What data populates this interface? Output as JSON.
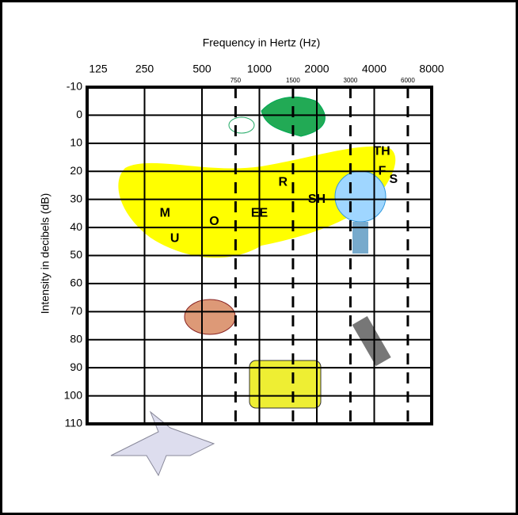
{
  "chart_data": {
    "type": "audiogram",
    "title": "Frequency in Hertz (Hz)",
    "y_label": "Intensity in decibels (dB)",
    "x_log_scale": true,
    "xlim": [
      125,
      8000
    ],
    "xticks": [
      125,
      250,
      500,
      1000,
      2000,
      4000,
      8000
    ],
    "x_minor_ticks": [
      750,
      1500,
      3000,
      6000
    ],
    "ylim": [
      -10,
      110
    ],
    "y_reversed": true,
    "yticks": [
      -10,
      0,
      10,
      20,
      30,
      40,
      50,
      60,
      70,
      80,
      90,
      100,
      110
    ],
    "grid": true,
    "color": "#000000",
    "annotations": [
      {
        "text": "M",
        "x": 320,
        "y": 35
      },
      {
        "text": "U",
        "x": 360,
        "y": 44
      },
      {
        "text": "O",
        "x": 580,
        "y": 38
      },
      {
        "text": "EE",
        "x": 1000,
        "y": 35
      },
      {
        "text": "R",
        "x": 1330,
        "y": 24
      },
      {
        "text": "SH",
        "x": 2000,
        "y": 30
      },
      {
        "text": "TH",
        "x": 4380,
        "y": 13
      },
      {
        "text": "F",
        "x": 4400,
        "y": 20
      },
      {
        "text": "S",
        "x": 5050,
        "y": 23
      }
    ]
  }
}
